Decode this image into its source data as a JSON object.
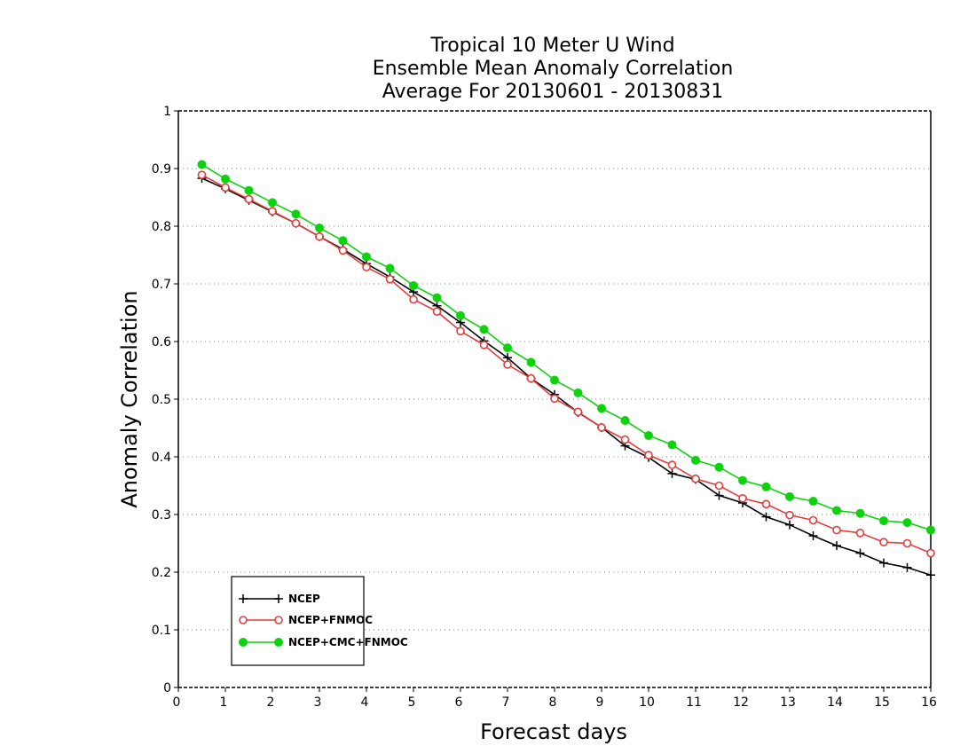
{
  "chart_data": {
    "type": "line",
    "title_lines": [
      "Tropical 10 Meter U Wind",
      "Ensemble Mean Anomaly Correlation",
      "Average For 20130601 - 20130831"
    ],
    "xlabel": "Forecast days",
    "ylabel": "Anomaly Correlation",
    "xlim": [
      0,
      16
    ],
    "ylim": [
      0,
      1
    ],
    "xticks": [
      "0",
      "1",
      "2",
      "3",
      "4",
      "5",
      "6",
      "7",
      "8",
      "9",
      "10",
      "11",
      "12",
      "13",
      "14",
      "15",
      "16"
    ],
    "yticks": [
      "0",
      "0.1",
      "0.2",
      "0.3",
      "0.4",
      "0.5",
      "0.6",
      "0.7",
      "0.8",
      "0.9",
      "1"
    ],
    "grid": true,
    "legend_position": "bottom-left",
    "x": [
      0.5,
      1,
      1.5,
      2,
      2.5,
      3,
      3.5,
      4,
      4.5,
      5,
      5.5,
      6,
      6.5,
      7,
      7.5,
      8,
      8.5,
      9,
      9.5,
      10,
      10.5,
      11,
      11.5,
      12,
      12.5,
      13,
      13.5,
      14,
      14.5,
      15,
      15.5,
      16
    ],
    "series": [
      {
        "name": "NCEP",
        "color": "#000000",
        "marker": "plus",
        "values": [
          0.883,
          0.865,
          0.845,
          0.825,
          0.805,
          0.782,
          0.76,
          0.735,
          0.712,
          0.686,
          0.662,
          0.633,
          0.601,
          0.572,
          0.536,
          0.508,
          0.477,
          0.451,
          0.419,
          0.399,
          0.371,
          0.361,
          0.333,
          0.32,
          0.296,
          0.282,
          0.263,
          0.246,
          0.233,
          0.216,
          0.208,
          0.195
        ]
      },
      {
        "name": "NCEP+FNMOC",
        "color": "#e23d3d",
        "marker": "open-circle",
        "values": [
          0.889,
          0.867,
          0.847,
          0.826,
          0.805,
          0.782,
          0.758,
          0.729,
          0.708,
          0.673,
          0.652,
          0.618,
          0.594,
          0.56,
          0.536,
          0.501,
          0.478,
          0.451,
          0.43,
          0.403,
          0.386,
          0.362,
          0.35,
          0.328,
          0.318,
          0.299,
          0.29,
          0.273,
          0.268,
          0.252,
          0.25,
          0.233
        ]
      },
      {
        "name": "NCEP+CMC+FNMOC",
        "color": "#0fd20f",
        "marker": "filled-circle",
        "values": [
          0.907,
          0.882,
          0.862,
          0.841,
          0.821,
          0.797,
          0.775,
          0.747,
          0.727,
          0.697,
          0.676,
          0.645,
          0.621,
          0.589,
          0.564,
          0.533,
          0.511,
          0.484,
          0.463,
          0.437,
          0.421,
          0.394,
          0.382,
          0.359,
          0.348,
          0.331,
          0.323,
          0.307,
          0.302,
          0.289,
          0.286,
          0.273
        ]
      }
    ]
  }
}
